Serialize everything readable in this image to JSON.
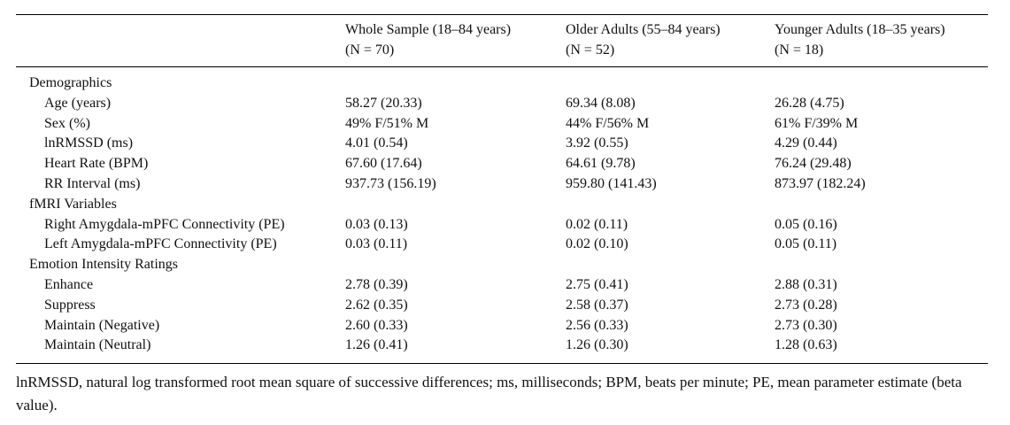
{
  "table": {
    "columns": [
      {
        "title": "Whole Sample (18–84 years)",
        "n": "(N = 70)"
      },
      {
        "title": "Older Adults (55–84 years)",
        "n": "(N = 52)"
      },
      {
        "title": "Younger Adults (18–35 years)",
        "n": "(N = 18)"
      }
    ],
    "sections": [
      {
        "label": "Demographics",
        "rows": [
          [
            "Age (years)",
            "58.27 (20.33)",
            "69.34 (8.08)",
            "26.28 (4.75)"
          ],
          [
            "Sex (%)",
            "49% F/51% M",
            "44% F/56% M",
            "61% F/39% M"
          ],
          [
            "lnRMSSD (ms)",
            "4.01 (0.54)",
            "3.92 (0.55)",
            "4.29 (0.44)"
          ],
          [
            "Heart Rate (BPM)",
            "67.60 (17.64)",
            "64.61 (9.78)",
            "76.24 (29.48)"
          ],
          [
            "RR Interval (ms)",
            "937.73 (156.19)",
            "959.80 (141.43)",
            "873.97 (182.24)"
          ]
        ]
      },
      {
        "label": "fMRI Variables",
        "rows": [
          [
            "Right Amygdala-mPFC Connectivity (PE)",
            "0.03 (0.13)",
            "0.02 (0.11)",
            "0.05 (0.16)"
          ],
          [
            "Left Amygdala-mPFC Connectivity (PE)",
            "0.03 (0.11)",
            "0.02 (0.10)",
            "0.05 (0.11)"
          ]
        ]
      },
      {
        "label": "Emotion Intensity Ratings",
        "rows": [
          [
            "Enhance",
            "2.78 (0.39)",
            "2.75 (0.41)",
            "2.88 (0.31)"
          ],
          [
            "Suppress",
            "2.62 (0.35)",
            "2.58 (0.37)",
            "2.73 (0.28)"
          ],
          [
            "Maintain (Negative)",
            "2.60 (0.33)",
            "2.56 (0.33)",
            "2.73 (0.30)"
          ],
          [
            "Maintain (Neutral)",
            "1.26 (0.41)",
            "1.26 (0.30)",
            "1.28 (0.63)"
          ]
        ]
      }
    ]
  },
  "footnote": "lnRMSSD, natural log transformed root mean square of successive differences; ms, milliseconds; BPM, beats per minute; PE, mean parameter estimate (beta value)."
}
